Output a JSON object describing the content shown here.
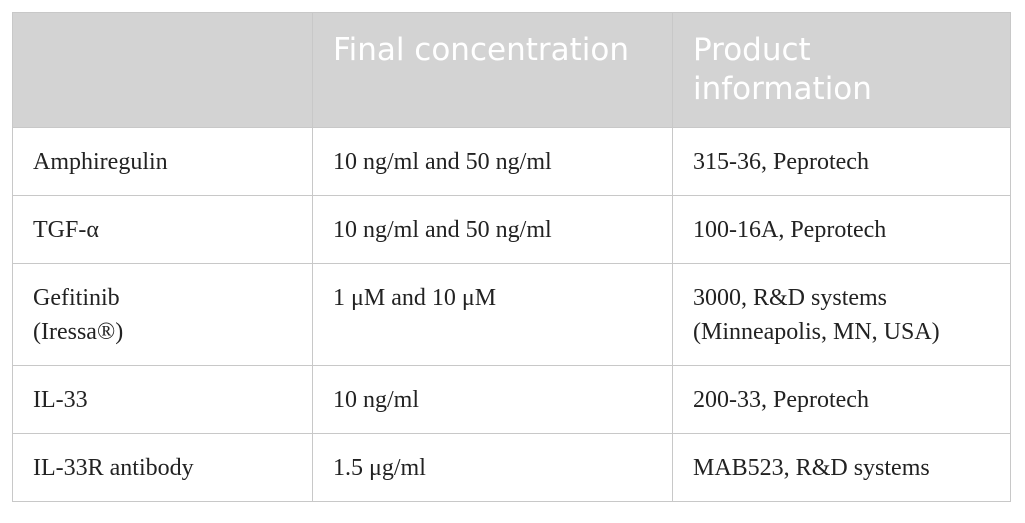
{
  "table": {
    "header": [
      "Final concentration",
      "Product information"
    ],
    "rows": [
      [
        "Amphiregulin",
        "10 ng/ml and 50 ng/ml",
        "315-36, Peprotech"
      ],
      [
        "TGF-α",
        "10 ng/ml and 50 ng/ml",
        "100-16A, Peprotech"
      ],
      [
        [
          "Gefitinib",
          "(Iressa®)"
        ],
        "1 μM and 10 μM",
        [
          "3000, R&D systems",
          "(Minneapolis, MN, USA)"
        ]
      ],
      [
        "IL-33",
        "10 ng/ml",
        "200-33, Peprotech"
      ],
      [
        "IL-33R antibody",
        "1.5 μg/ml",
        "MAB523, R&D systems"
      ]
    ]
  }
}
